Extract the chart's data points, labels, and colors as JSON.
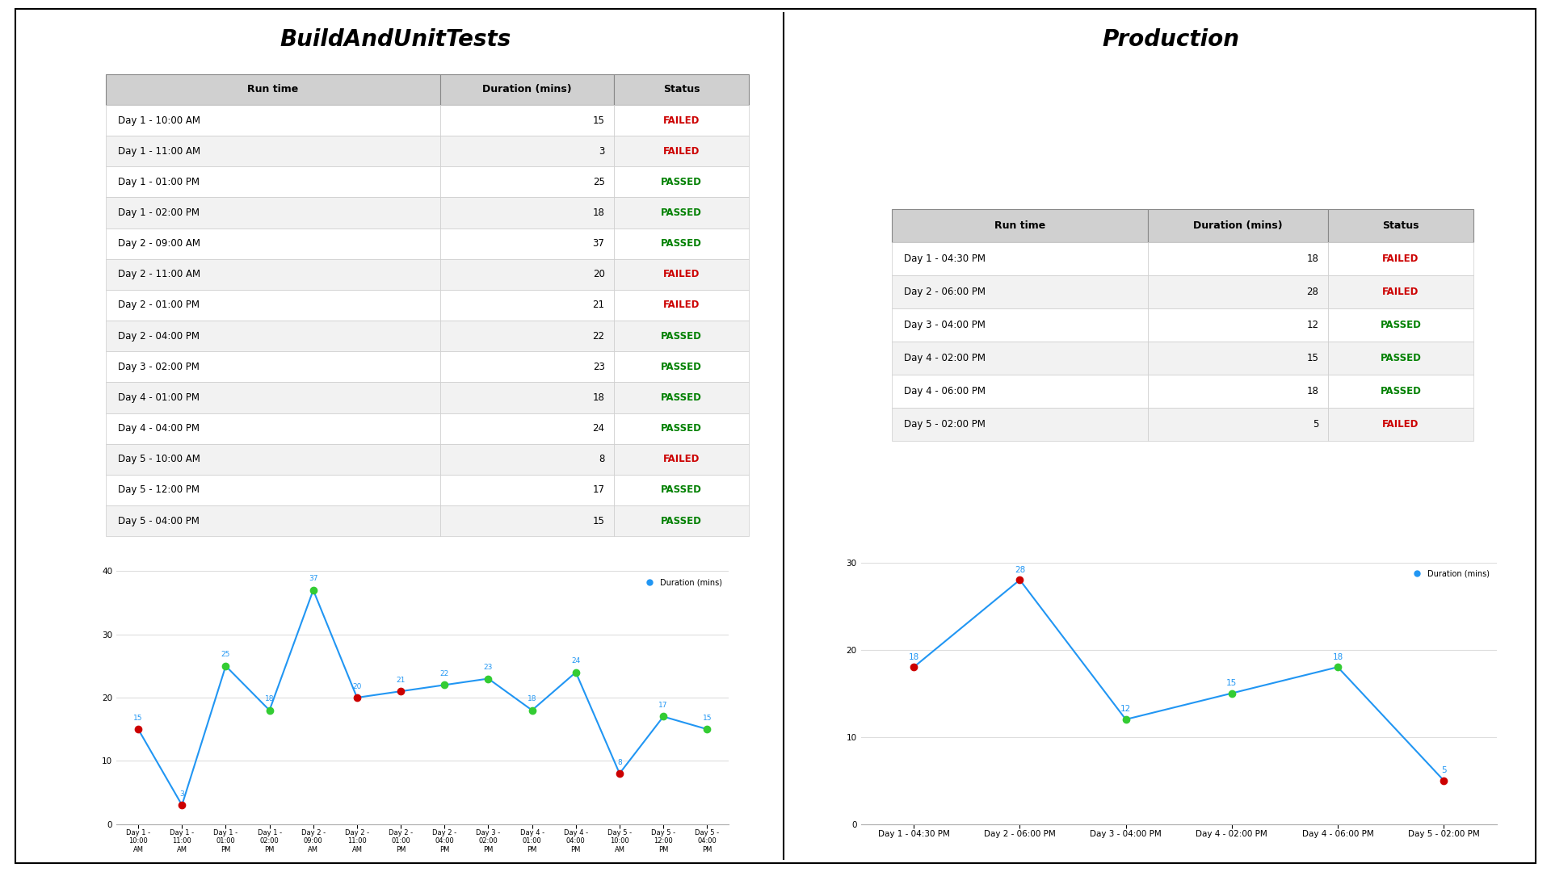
{
  "left_title": "BuildAndUnitTests",
  "right_title": "Production",
  "left_table": {
    "headers": [
      "Run time",
      "Duration (mins)",
      "Status"
    ],
    "rows": [
      [
        "Day 1 - 10:00 AM",
        15,
        "FAILED"
      ],
      [
        "Day 1 - 11:00 AM",
        3,
        "FAILED"
      ],
      [
        "Day 1 - 01:00 PM",
        25,
        "PASSED"
      ],
      [
        "Day 1 - 02:00 PM",
        18,
        "PASSED"
      ],
      [
        "Day 2 - 09:00 AM",
        37,
        "PASSED"
      ],
      [
        "Day 2 - 11:00 AM",
        20,
        "FAILED"
      ],
      [
        "Day 2 - 01:00 PM",
        21,
        "FAILED"
      ],
      [
        "Day 2 - 04:00 PM",
        22,
        "PASSED"
      ],
      [
        "Day 3 - 02:00 PM",
        23,
        "PASSED"
      ],
      [
        "Day 4 - 01:00 PM",
        18,
        "PASSED"
      ],
      [
        "Day 4 - 04:00 PM",
        24,
        "PASSED"
      ],
      [
        "Day 5 - 10:00 AM",
        8,
        "FAILED"
      ],
      [
        "Day 5 - 12:00 PM",
        17,
        "PASSED"
      ],
      [
        "Day 5 - 04:00 PM",
        15,
        "PASSED"
      ]
    ]
  },
  "right_table": {
    "headers": [
      "Run time",
      "Duration (mins)",
      "Status"
    ],
    "rows": [
      [
        "Day 1 - 04:30 PM",
        18,
        "FAILED"
      ],
      [
        "Day 2 - 06:00 PM",
        28,
        "FAILED"
      ],
      [
        "Day 3 - 04:00 PM",
        12,
        "PASSED"
      ],
      [
        "Day 4 - 02:00 PM",
        15,
        "PASSED"
      ],
      [
        "Day 4 - 06:00 PM",
        18,
        "PASSED"
      ],
      [
        "Day 5 - 02:00 PM",
        5,
        "FAILED"
      ]
    ]
  },
  "left_chart": {
    "x_labels": [
      "Day 1 -\n10:00\nAM",
      "Day 1 -\n11:00\nAM",
      "Day 1 -\n01:00\nPM",
      "Day 1 -\n02:00\nPM",
      "Day 2 -\n09:00\nAM",
      "Day 2 -\n11:00\nAM",
      "Day 2 -\n01:00\nPM",
      "Day 2 -\n04:00\nPM",
      "Day 3 -\n02:00\nPM",
      "Day 4 -\n01:00\nPM",
      "Day 4 -\n04:00\nPM",
      "Day 5 -\n10:00\nAM",
      "Day 5 -\n12:00\nPM",
      "Day 5 -\n04:00\nPM"
    ],
    "values": [
      15,
      3,
      25,
      18,
      37,
      20,
      21,
      22,
      23,
      18,
      24,
      8,
      17,
      15
    ],
    "statuses": [
      "FAILED",
      "FAILED",
      "PASSED",
      "PASSED",
      "PASSED",
      "FAILED",
      "FAILED",
      "PASSED",
      "PASSED",
      "PASSED",
      "PASSED",
      "FAILED",
      "PASSED",
      "PASSED"
    ],
    "ylim": [
      0,
      40
    ],
    "yticks": [
      0,
      10,
      20,
      30,
      40
    ]
  },
  "right_chart": {
    "x_labels": [
      "Day 1 - 04:30 PM",
      "Day 2 - 06:00 PM",
      "Day 3 - 04:00 PM",
      "Day 4 - 02:00 PM",
      "Day 4 - 06:00 PM",
      "Day 5 - 02:00 PM"
    ],
    "values": [
      18,
      28,
      12,
      15,
      18,
      5
    ],
    "statuses": [
      "FAILED",
      "FAILED",
      "PASSED",
      "PASSED",
      "PASSED",
      "FAILED"
    ],
    "ylim": [
      0,
      30
    ],
    "yticks": [
      0,
      10,
      20,
      30
    ]
  },
  "passed_color": "#008000",
  "failed_color": "#CC0000",
  "line_color": "#2196F3",
  "marker_color_passed": "#33CC33",
  "marker_color_failed": "#CC0000",
  "table_header_bg": "#D0D0D0",
  "table_row_bg1": "#FFFFFF",
  "table_row_bg2": "#F2F2F2",
  "background_color": "#FFFFFF",
  "divider_color": "#000000",
  "border_color": "#000000"
}
